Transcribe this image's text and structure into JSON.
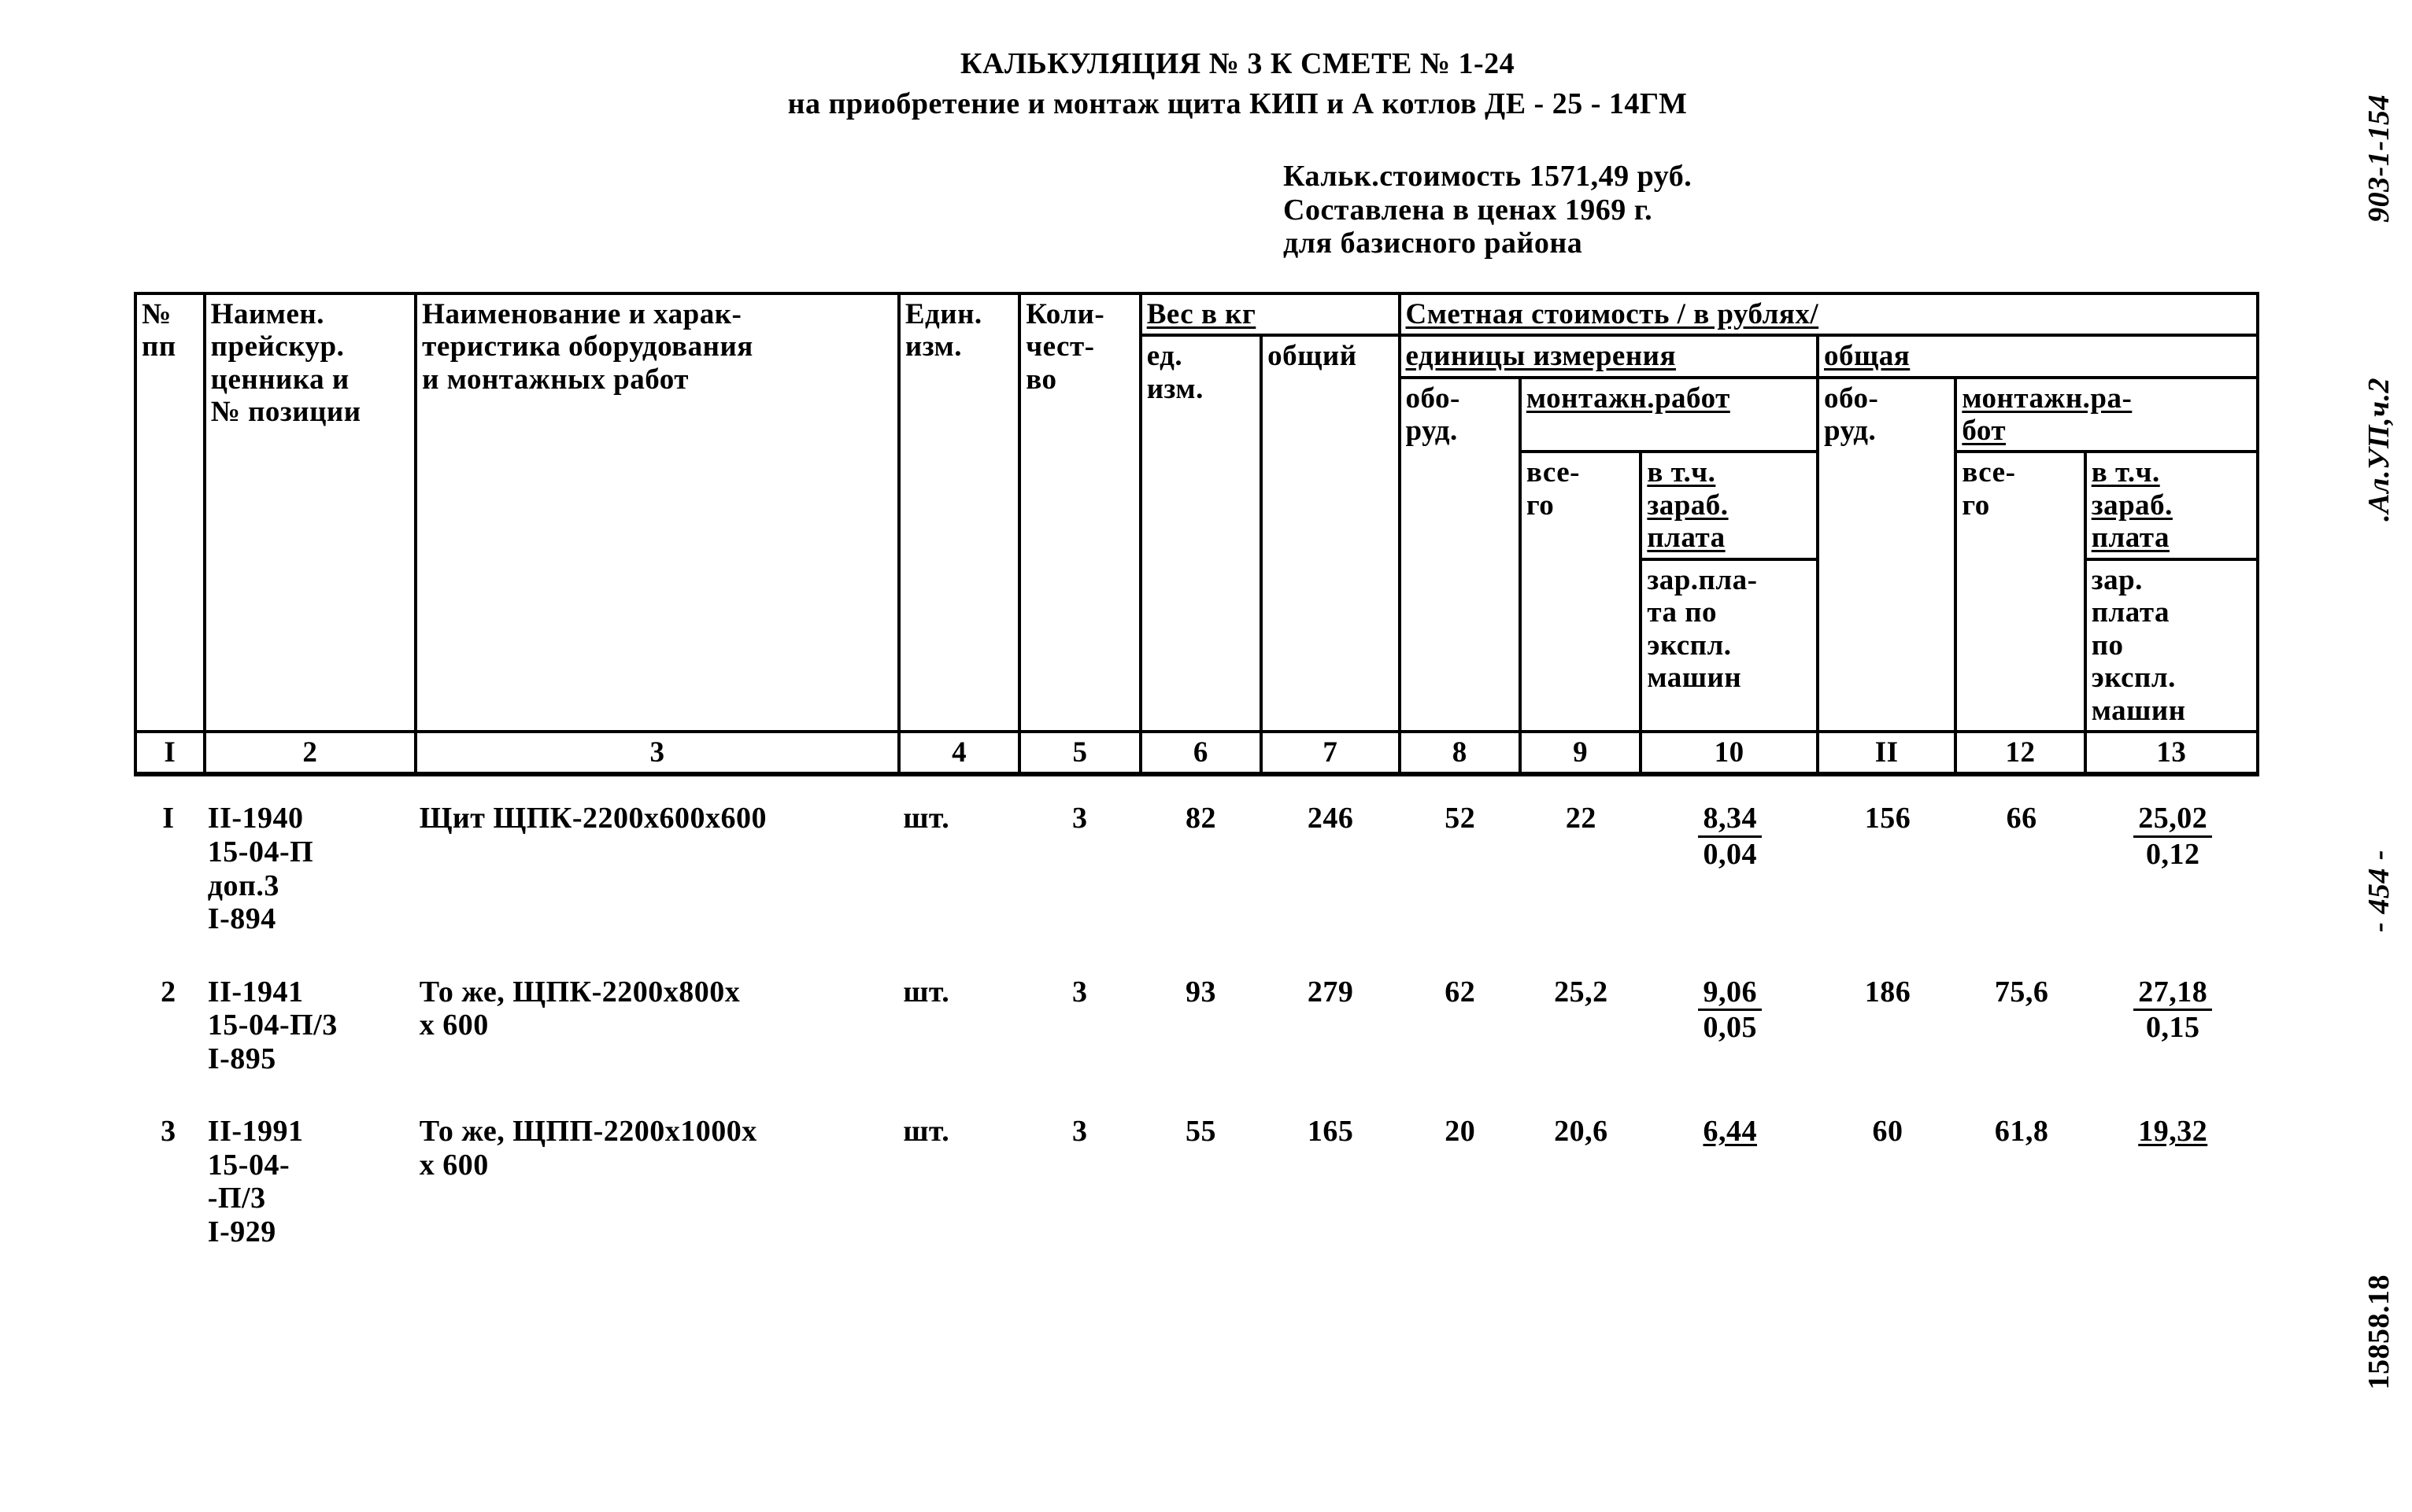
{
  "title": "КАЛЬКУЛЯЦИЯ № 3 К СМЕТЕ № 1-24",
  "subtitle": "на приобретение и монтаж щита КИП и А котлов ДЕ - 25 - 14ГМ",
  "meta": {
    "l1": "Кальк.стоимость 1571,49 руб.",
    "l2": "Составлена в ценах 1969 г.",
    "l3": "для базисного района"
  },
  "margin": {
    "doc_no": "903-1-154",
    "album": ".Ал.УП,ч.2",
    "page": "454",
    "stamp": "15858.18"
  },
  "columns": {
    "c1": "№\nпп",
    "c2": "Наимен.\nпрейскур.\nценника и\n№ позиции",
    "c3": "Наименование и харак-\nтеристика оборудования\nи монтажных работ",
    "c4": "Един.\nизм.",
    "c5": "Коли-\nчест-\nво",
    "weight_group": "Вес в кг",
    "c6": "ед.\nизм.",
    "c7": "общий",
    "cost_group": "Сметная стоимость / в рублях/",
    "unit_group": "единицы измерения",
    "total_group": "общая",
    "c8": "обо-\nруд.",
    "mont_group": "монтажн.работ",
    "c9": "все-\nго",
    "c10a": "в т.ч.\nзараб.\nплата",
    "c10b": "зар.пла-\nта по\nэкспл.\nмашин",
    "c11": "обо-\nруд.",
    "mont_group2": "монтажн.ра-\nбот",
    "c12": "все-\nго",
    "c13a": "в т.ч.\nзараб.\nплата",
    "c13b": "зар.\nплата\nпо\nэкспл.\nмашин"
  },
  "colnums": [
    "I",
    "2",
    "3",
    "4",
    "5",
    "6",
    "7",
    "8",
    "9",
    "10",
    "II",
    "12",
    "13"
  ],
  "rows": [
    {
      "n": "I",
      "ref": "II-1940\n15-04-П\nдоп.3\nI-894",
      "name": "Щит ЩПК-2200х600х600",
      "unit": "шт.",
      "qty": "3",
      "w_unit": "82",
      "w_tot": "246",
      "u_ob": "52",
      "u_mv": "22",
      "u_mf_n": "8,34",
      "u_mf_d": "0,04",
      "t_ob": "156",
      "t_mv": "66",
      "t_mf_n": "25,02",
      "t_mf_d": "0,12"
    },
    {
      "n": "2",
      "ref": "II-1941\n15-04-П/3\nI-895",
      "name": "То же, ЩПК-2200х800х\nх 600",
      "unit": "шт.",
      "qty": "3",
      "w_unit": "93",
      "w_tot": "279",
      "u_ob": "62",
      "u_mv": "25,2",
      "u_mf_n": "9,06",
      "u_mf_d": "0,05",
      "t_ob": "186",
      "t_mv": "75,6",
      "t_mf_n": "27,18",
      "t_mf_d": "0,15"
    },
    {
      "n": "3",
      "ref": "II-1991\n15-04-\n-П/3\nI-929",
      "name": "То же, ЩПП-2200х1000х\nх 600",
      "unit": "шт.",
      "qty": "3",
      "w_unit": "55",
      "w_tot": "165",
      "u_ob": "20",
      "u_mv": "20,6",
      "u_mf_n": "6,44",
      "u_mf_d": "",
      "t_ob": "60",
      "t_mv": "61,8",
      "t_mf_n": "19,32",
      "t_mf_d": ""
    }
  ]
}
